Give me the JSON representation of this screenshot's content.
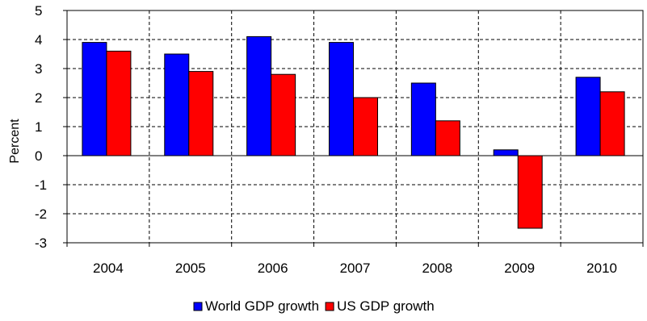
{
  "chart_data": {
    "type": "bar",
    "categories": [
      "2004",
      "2005",
      "2006",
      "2007",
      "2008",
      "2009",
      "2010"
    ],
    "series": [
      {
        "name": "World GDP growth",
        "color": "#0000ff",
        "values": [
          3.9,
          3.5,
          4.1,
          3.9,
          2.5,
          0.2,
          2.7
        ]
      },
      {
        "name": "US GDP growth",
        "color": "#ff0000",
        "values": [
          3.6,
          2.9,
          2.8,
          2.0,
          1.2,
          -2.5,
          2.2
        ]
      }
    ],
    "ylabel": "Percent",
    "xlabel": "",
    "ylim": [
      -3,
      5
    ],
    "yticks": [
      "-3",
      "-2",
      "-1",
      "0",
      "1",
      "2",
      "3",
      "4",
      "5"
    ],
    "grid": "dashed",
    "legend_position": "bottom"
  }
}
